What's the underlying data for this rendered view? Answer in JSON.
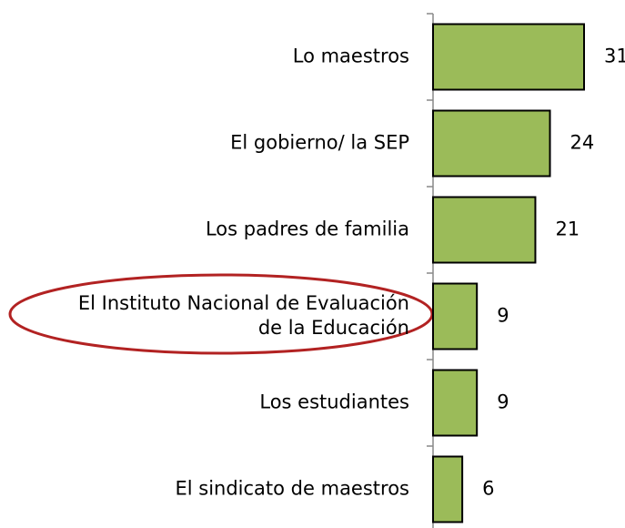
{
  "chart_data": {
    "type": "bar",
    "orientation": "horizontal",
    "categories": [
      "Lo maestros",
      "El gobierno/ la SEP",
      "Los padres de familia",
      "El Instituto Nacional de Evaluación\nde la Educación",
      "Los estudiantes",
      "El sindicato de maestros"
    ],
    "values": [
      31,
      24,
      21,
      9,
      9,
      6
    ],
    "color": "#9bbb59"
  }
}
